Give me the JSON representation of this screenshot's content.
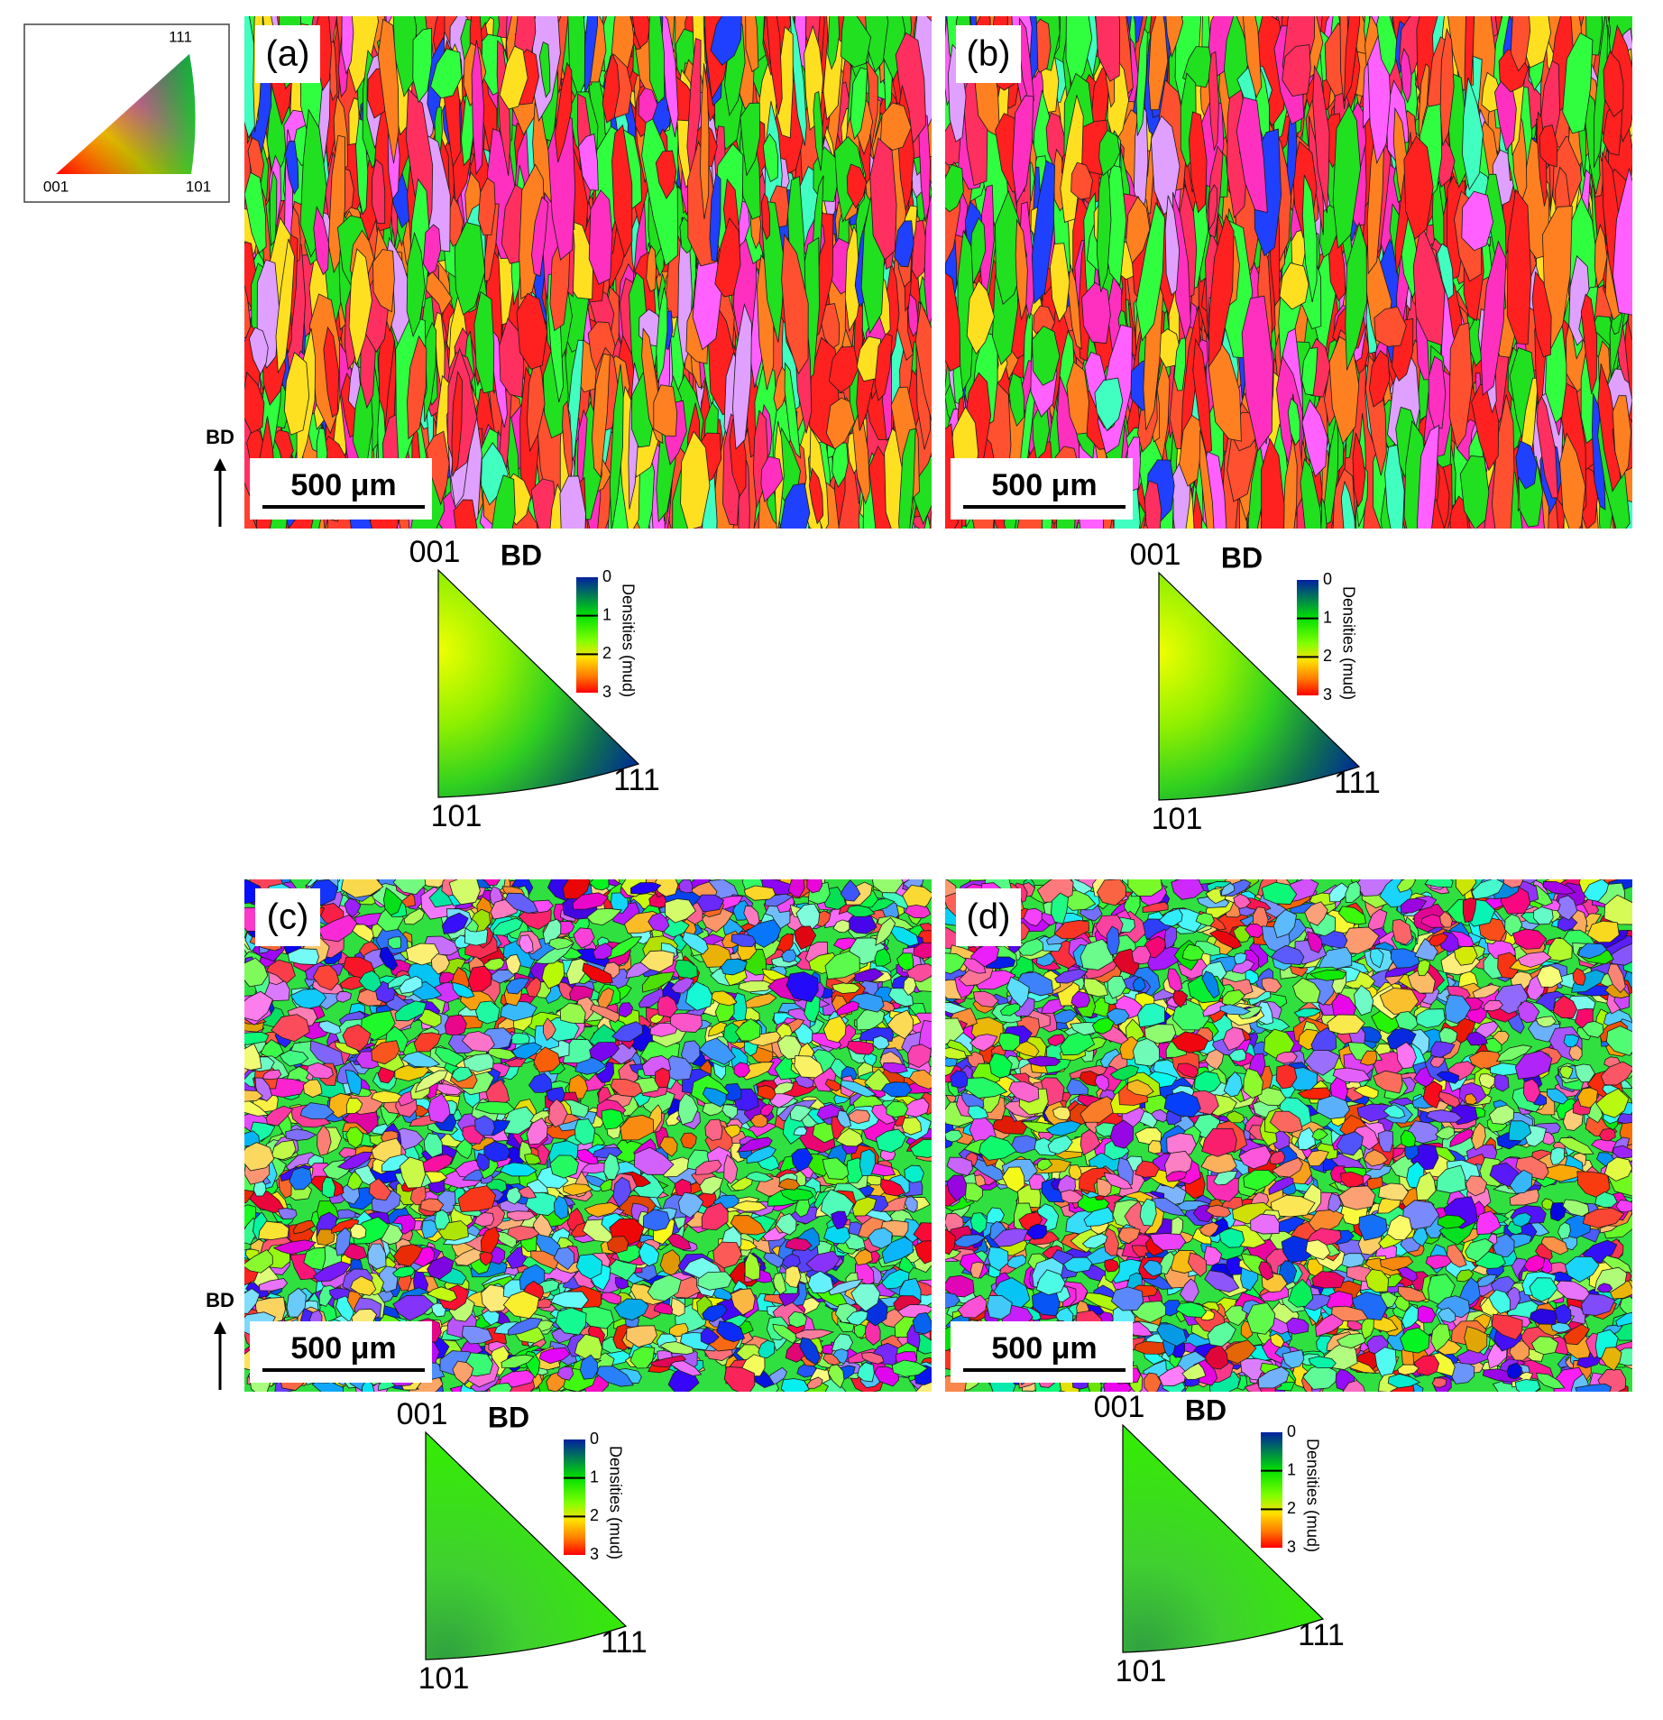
{
  "key": {
    "labels": [
      "111",
      "001",
      "101"
    ]
  },
  "panels": [
    {
      "label": "(a)",
      "scale_bar": "500 μm",
      "build_direction": "BD",
      "pole_figure": {
        "title": "BD",
        "corners": [
          "001",
          "101",
          "111"
        ],
        "colorbar_label": "Densities (mud)",
        "colorbar_ticks": [
          0,
          1,
          2,
          3
        ]
      }
    },
    {
      "label": "(b)",
      "scale_bar": "500 μm",
      "pole_figure": {
        "title": "BD",
        "corners": [
          "001",
          "101",
          "111"
        ],
        "colorbar_label": "Densities (mud)",
        "colorbar_ticks": [
          0,
          1,
          2,
          3
        ]
      }
    },
    {
      "label": "(c)",
      "scale_bar": "500 μm",
      "build_direction": "BD",
      "pole_figure": {
        "title": "BD",
        "corners": [
          "001",
          "101",
          "111"
        ],
        "colorbar_label": "Densities (mud)",
        "colorbar_ticks": [
          0,
          1,
          2,
          3
        ]
      }
    },
    {
      "label": "(d)",
      "scale_bar": "500 μm",
      "pole_figure": {
        "title": "BD",
        "corners": [
          "001",
          "101",
          "111"
        ],
        "colorbar_label": "Densities (mud)",
        "colorbar_ticks": [
          0,
          1,
          2,
          3
        ]
      }
    }
  ]
}
